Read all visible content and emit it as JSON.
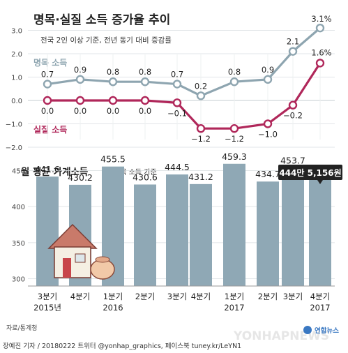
{
  "title": "명목·실질 소득 증가율 추이",
  "subtitle": "전국 2인 이상 기준, 전년 동기 대비 증감률",
  "source": "자료/통계청",
  "credit": "장예진 기자 / 20180222 트위터 @yonhap_graphics, 페이스북 tuney.kr/LeYN1",
  "watermark": "YONHAPNEWS",
  "logo_text": "연합뉴스",
  "colors": {
    "nominal": "#8ea5b0",
    "real": "#b0275a",
    "bar": "#8fa8b5",
    "grid": "#d8dde0",
    "callout_bg": "#222222"
  },
  "chart_data": [
    {
      "type": "line",
      "title": "명목·실질 소득 증가율 추이",
      "categories": [
        "3분기 2015년",
        "4분기",
        "1분기 2016",
        "2분기",
        "3분기",
        "4분기",
        "1분기 2017",
        "2분기",
        "3분기",
        "4분기 2017"
      ],
      "series": [
        {
          "name": "명목 소득",
          "values": [
            0.7,
            0.9,
            0.8,
            0.8,
            0.7,
            0.2,
            0.8,
            0.9,
            2.1,
            3.1
          ],
          "labels": [
            "0.7",
            "0.9",
            "0.8",
            "0.8",
            "0.7",
            "0.2",
            "0.8",
            "0.9",
            "2.1",
            "3.1%"
          ]
        },
        {
          "name": "실질 소득",
          "values": [
            0.0,
            0.0,
            0.0,
            0.0,
            -0.1,
            -1.2,
            -1.2,
            -1.0,
            -0.2,
            1.6
          ],
          "labels": [
            "0.0",
            "0.0",
            "0.0",
            "0.0",
            "−0.1",
            "−1.2",
            "−1.2",
            "−1.0",
            "−0.2",
            "1.6%"
          ]
        }
      ],
      "yticks": [
        "3.0",
        "2.0",
        "1.0",
        "0.0",
        "−1.0",
        "−2.0"
      ],
      "ytick_values": [
        3,
        2,
        1,
        0,
        -1,
        -2
      ],
      "ylim": [
        -2,
        3
      ],
      "grid": true
    },
    {
      "type": "bar",
      "title": "월 평균 가계소득",
      "subtitle": "명목 소득 기준",
      "categories": [
        "3분기 2015년",
        "4분기",
        "1분기 2016",
        "2분기",
        "3분기",
        "4분기",
        "1분기 2017",
        "2분기",
        "3분기",
        "4분기 2017"
      ],
      "values": [
        441.6,
        430.2,
        455.5,
        430.6,
        444.5,
        431.2,
        459.3,
        434.7,
        453.7,
        444.5156
      ],
      "value_labels": [
        "441.6",
        "430.2",
        "455.5",
        "430.6",
        "444.5",
        "431.2",
        "459.3",
        "434.7",
        "453.7",
        ""
      ],
      "callout": "444만 5,156원",
      "yticks": [
        "450",
        "400",
        "350",
        "300"
      ],
      "ytick_values": [
        450,
        400,
        350,
        300
      ],
      "ylim": [
        290,
        460
      ],
      "grid": true
    }
  ],
  "x_labels": [
    {
      "line1": "3분기",
      "line2": "2015년"
    },
    {
      "line1": "4분기",
      "line2": ""
    },
    {
      "line1": "1분기",
      "line2": "2016"
    },
    {
      "line1": "2분기",
      "line2": ""
    },
    {
      "line1": "3분기",
      "line2": ""
    },
    {
      "line1": "4분기",
      "line2": ""
    },
    {
      "line1": "1분기",
      "line2": "2017"
    },
    {
      "line1": "2분기",
      "line2": ""
    },
    {
      "line1": "3분기",
      "line2": ""
    },
    {
      "line1": "4분기",
      "line2": "2017"
    }
  ]
}
